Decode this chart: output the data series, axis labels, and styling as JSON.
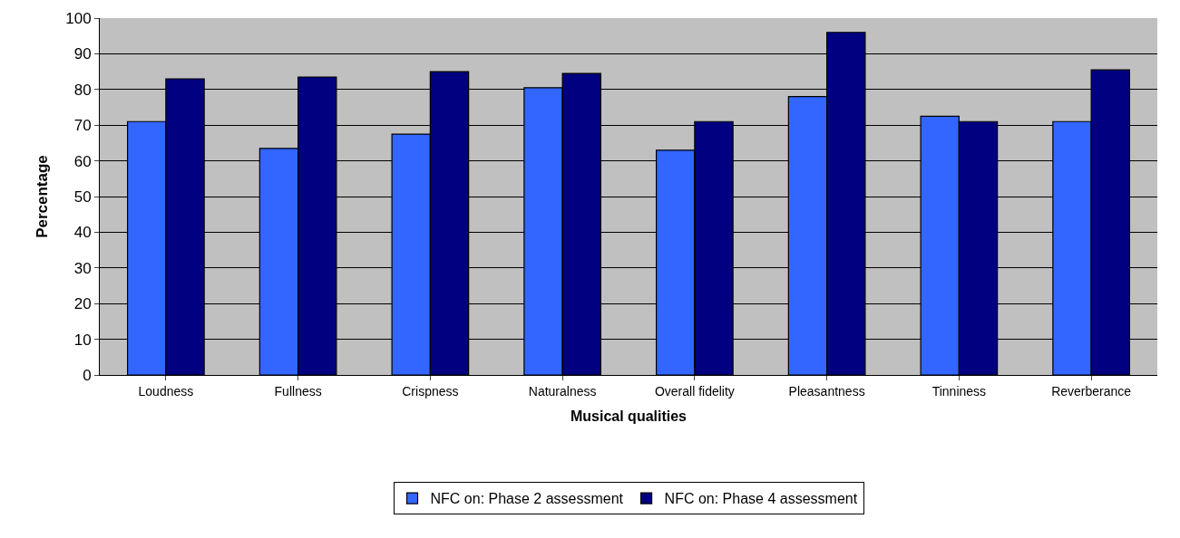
{
  "chart_data": {
    "type": "bar",
    "xlabel": "Musical qualities",
    "ylabel": "Percentage",
    "categories": [
      "Loudness",
      "Fullness",
      "Crispness",
      "Naturalness",
      "Overall fidelity",
      "Pleasantness",
      "Tinniness",
      "Reverberance"
    ],
    "series": [
      {
        "name": "NFC on: Phase 2 assessment",
        "color": "#3366ff",
        "values": [
          71,
          63.5,
          67.5,
          80.5,
          63,
          78,
          72.5,
          71
        ]
      },
      {
        "name": "NFC on: Phase 4 assessment",
        "color": "#000080",
        "values": [
          83,
          83.5,
          85,
          84.5,
          71,
          96,
          71,
          85.5
        ]
      }
    ],
    "ylim": [
      0,
      100
    ],
    "yticks": [
      0,
      10,
      20,
      30,
      40,
      50,
      60,
      70,
      80,
      90,
      100
    ],
    "grid": "y",
    "legend": "bottom"
  }
}
